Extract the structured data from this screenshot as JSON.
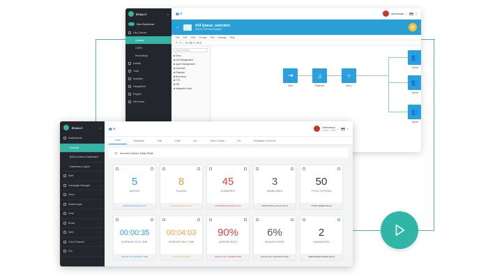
{
  "back": {
    "brand": "ECALLY",
    "toggle_label": "New Experience",
    "sidebar": [
      {
        "label": "Lilly Queues",
        "selected": false,
        "sub": false
      },
      {
        "label": "Queues",
        "selected": true,
        "sub": true
      },
      {
        "label": "CDRS",
        "selected": false,
        "sub": true
      },
      {
        "label": "Recordings",
        "selected": false,
        "sub": true
      },
      {
        "label": "Activity",
        "selected": false,
        "sub": false
      },
      {
        "label": "Tools",
        "selected": false,
        "sub": false
      },
      {
        "label": "Analytics",
        "selected": false,
        "sub": false
      },
      {
        "label": "Integrations",
        "selected": false,
        "sub": false
      },
      {
        "label": "Plugins",
        "selected": false,
        "sub": false
      },
      {
        "label": "Site Flows",
        "selected": false,
        "sub": false
      }
    ],
    "user": "administrator",
    "header_title": "#14 Queue_selection",
    "header_sub": "Edit the IVR Flow Designer",
    "menu": [
      "File",
      "Edit",
      "View",
      "Format",
      "Text",
      "Arrange",
      "Help"
    ],
    "tool_icons": "↶ ↷ ⬚ ⊡ ⌫ ✎ ⊞ ⊟",
    "search_placeholder": "Search Shapes",
    "tree": [
      "Tools",
      "Call Management",
      "Agent Management",
      "Voicemail",
      "Playback",
      "Recording",
      "TTS",
      "IVR",
      "Integration Node"
    ],
    "nodes": [
      {
        "label": "Start",
        "icon": "⇥"
      },
      {
        "label": "Playback",
        "icon": "♫"
      },
      {
        "label": "Menu",
        "icon": "⑂"
      },
      {
        "label": "Queue",
        "icon": "👥"
      },
      {
        "label": "Queue",
        "icon": "👥"
      },
      {
        "label": "Queue",
        "icon": "👥"
      }
    ]
  },
  "front": {
    "brand": "ECALLY",
    "sidebar": [
      {
        "label": "Dashboards",
        "selected": false,
        "sub": false
      },
      {
        "label": "General",
        "selected": true,
        "sub": true
      },
      {
        "label": "[MkII] Custom Dashboard",
        "selected": false,
        "sub": true
      },
      {
        "label": "Dashboard_Agent",
        "selected": false,
        "sub": true
      },
      {
        "label": "Staff",
        "selected": false,
        "sub": false
      },
      {
        "label": "Campaign Manager",
        "selected": false,
        "sub": false
      },
      {
        "label": "Voice",
        "selected": false,
        "sub": false
      },
      {
        "label": "Mobile Apps",
        "selected": false,
        "sub": false
      },
      {
        "label": "Chat",
        "selected": false,
        "sub": false
      },
      {
        "label": "Email",
        "selected": false,
        "sub": false
      },
      {
        "label": "SMS",
        "selected": false,
        "sub": false
      },
      {
        "label": "Omni Channel",
        "selected": false,
        "sub": false
      },
      {
        "label": "Fax",
        "selected": false,
        "sub": false
      }
    ],
    "user_name": "administrator",
    "user_ext": "phone • 1000",
    "tabs": [
      "Voice",
      "Whitelabel",
      "Chat",
      "Email",
      "Icon",
      "Open Contact",
      "Fax",
      "Whatsapp Connector"
    ],
    "section_title": "Inbound Queue Daily Stats",
    "cards": [
      {
        "value": "5",
        "label": "WAITING",
        "foot": "WAITING STATUS CALLS",
        "color": "#2a9fd6"
      },
      {
        "value": "8",
        "label": "TALKING",
        "foot": "ACTIVE QUEUE CALLS",
        "color": "#f0a035"
      },
      {
        "value": "45",
        "label": "ANSWERED",
        "foot": "ANSWERED QUEUE CALLS",
        "color": "#e04040"
      },
      {
        "value": "3",
        "label": "ABANDONED",
        "foot": "ABANDONED QUEUE CALLS",
        "color": "#555555"
      },
      {
        "value": "50",
        "label": "TOTAL OFFERED",
        "foot": "TOTAL QUEUE CALLS",
        "color": "#333333"
      },
      {
        "value": "00:00:35",
        "label": "AVERAGE HOLD TIME",
        "foot": "QUEUE CALL WAITING TIME",
        "color": "#2a9fd6"
      },
      {
        "value": "00:04:03",
        "label": "AVERAGE TALK TIME",
        "foot": "ACTIVE CALL TIME",
        "color": "#f0a035"
      },
      {
        "value": "90%",
        "label": "ANSWER RATE",
        "foot": "QUEUE CALL ANSWER RATE",
        "color": "#e04040"
      },
      {
        "value": "6%",
        "label": "ABANDON RATE",
        "foot": "QUEUE CALL ABANDON RATE",
        "color": "#555555"
      },
      {
        "value": "2",
        "label": "UNMANAGED",
        "foot": "UNMANAGED QUEUE CALLS",
        "color": "#333333"
      }
    ]
  },
  "colors": {
    "accent": "#35b3a3",
    "header_blue": "#2a9fd6",
    "sidebar_dark": "#23272d",
    "play": "#2fb6a6"
  }
}
